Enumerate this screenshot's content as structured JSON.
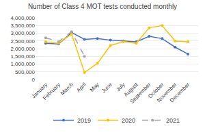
{
  "chart_data": {
    "type": "line",
    "title": "Number of Class 4 MOT tests conducted monthly",
    "categories": [
      "January",
      "February",
      "March",
      "April",
      "May",
      "June",
      "July",
      "August",
      "September",
      "October",
      "November",
      "December"
    ],
    "series": [
      {
        "name": "2019",
        "color": "#4472C4",
        "marker": "circle",
        "line_style": "solid",
        "values": [
          2350000,
          2300000,
          3050000,
          2600000,
          2650000,
          2550000,
          2500000,
          2450000,
          2800000,
          2650000,
          2100000,
          1650000
        ]
      },
      {
        "name": "2020",
        "color": "#FFC000",
        "marker": "circle",
        "line_style": "solid",
        "values": [
          2450000,
          2350000,
          2950000,
          450000,
          1050000,
          2200000,
          2450000,
          2350000,
          3350000,
          3500000,
          2500000,
          2450000
        ]
      },
      {
        "name": "2021",
        "color": "#A5A5A5",
        "marker": "circle",
        "line_style": "dashed",
        "values": [
          2700000,
          2450000,
          3100000,
          1500000,
          null,
          null,
          null,
          null,
          null,
          null,
          null,
          null
        ]
      }
    ],
    "ylim": [
      0,
      4000000
    ],
    "yticks": [
      0,
      {
        "value": 500000,
        "label": "500,000"
      },
      {
        "value": 1000000,
        "label": "1,000,000"
      },
      {
        "value": 1500000,
        "label": "1,500,000"
      },
      {
        "value": 2000000,
        "label": "2,000,000"
      },
      {
        "value": 2500000,
        "label": "2,500,000"
      },
      {
        "value": 3000000,
        "label": "3,000,000"
      },
      {
        "value": 3500000,
        "label": "3,500,000"
      },
      {
        "value": 4000000,
        "label": "4,000,000"
      }
    ],
    "grid": true,
    "legend": "bottom"
  }
}
